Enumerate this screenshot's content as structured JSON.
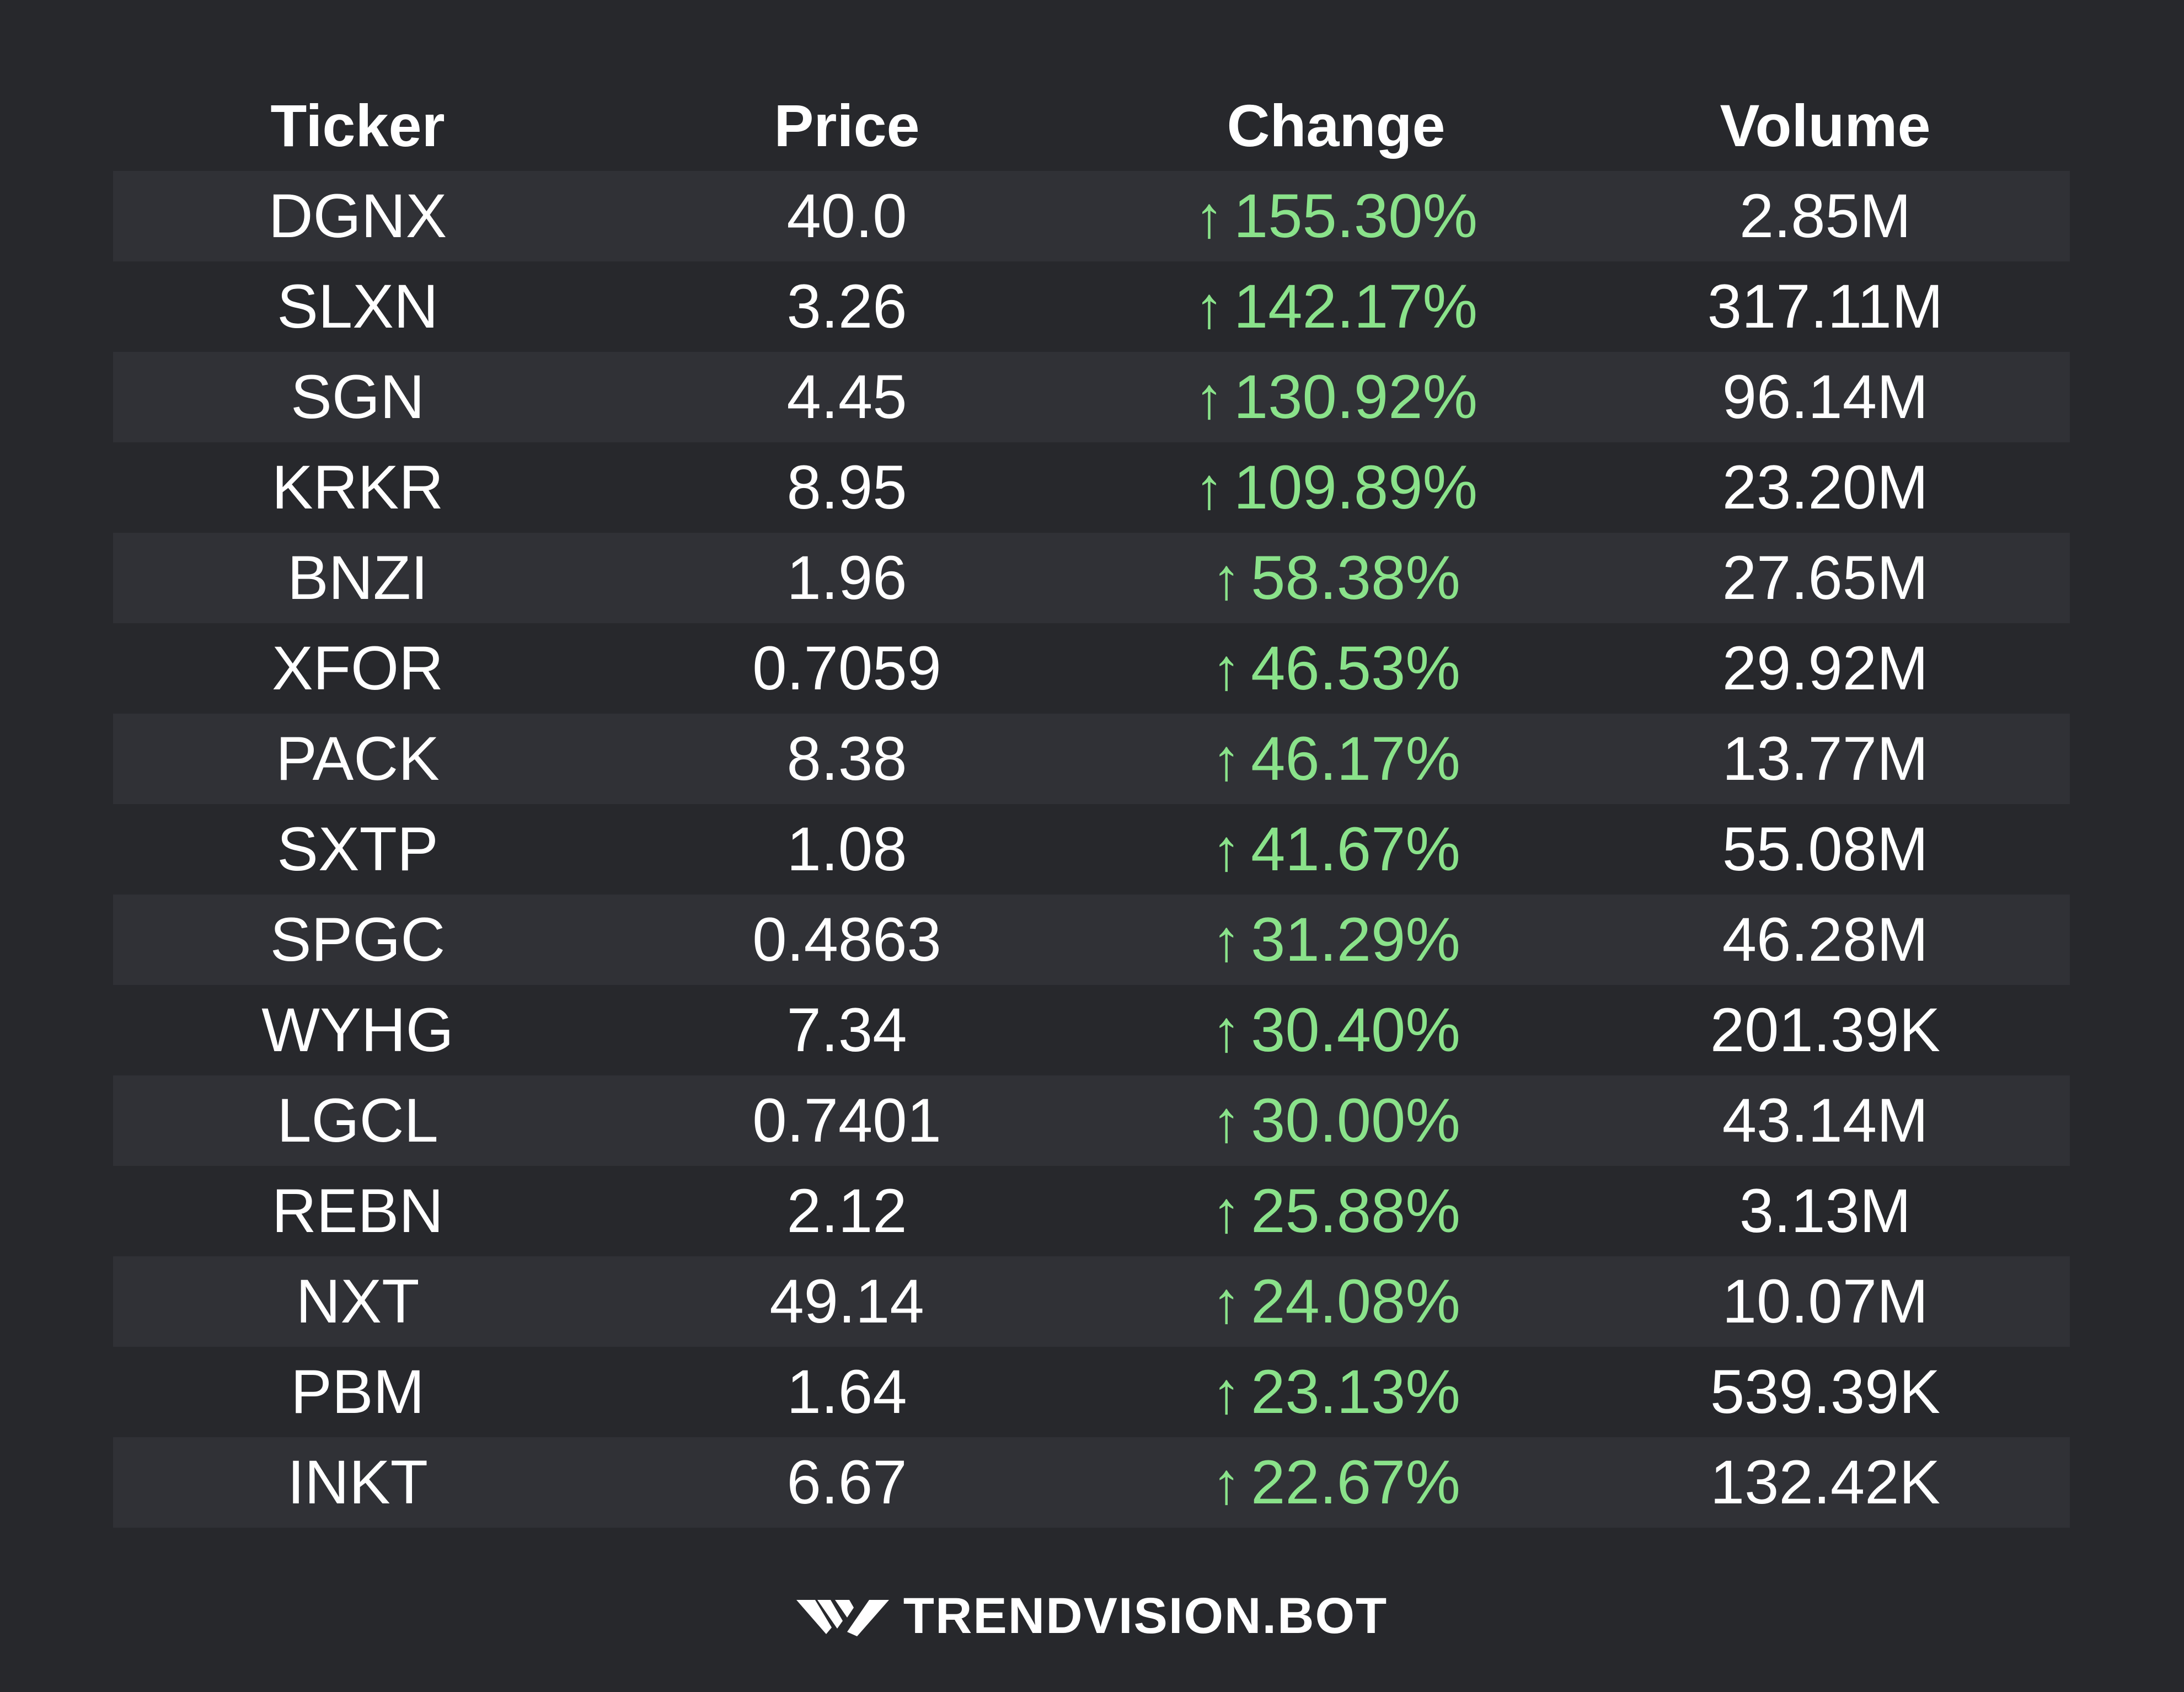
{
  "chart_data": {
    "type": "table",
    "columns": [
      "Ticker",
      "Price",
      "Change",
      "Volume"
    ],
    "rows": [
      {
        "ticker": "DGNX",
        "price": "40.0",
        "change": "155.30%",
        "volume": "2.85M"
      },
      {
        "ticker": "SLXN",
        "price": "3.26",
        "change": "142.17%",
        "volume": "317.11M"
      },
      {
        "ticker": "SGN",
        "price": "4.45",
        "change": "130.92%",
        "volume": "96.14M"
      },
      {
        "ticker": "KRKR",
        "price": "8.95",
        "change": "109.89%",
        "volume": "23.20M"
      },
      {
        "ticker": "BNZI",
        "price": "1.96",
        "change": "58.38%",
        "volume": "27.65M"
      },
      {
        "ticker": "XFOR",
        "price": "0.7059",
        "change": "46.53%",
        "volume": "29.92M"
      },
      {
        "ticker": "PACK",
        "price": "8.38",
        "change": "46.17%",
        "volume": "13.77M"
      },
      {
        "ticker": "SXTP",
        "price": "1.08",
        "change": "41.67%",
        "volume": "55.08M"
      },
      {
        "ticker": "SPGC",
        "price": "0.4863",
        "change": "31.29%",
        "volume": "46.28M"
      },
      {
        "ticker": "WYHG",
        "price": "7.34",
        "change": "30.40%",
        "volume": "201.39K"
      },
      {
        "ticker": "LGCL",
        "price": "0.7401",
        "change": "30.00%",
        "volume": "43.14M"
      },
      {
        "ticker": "REBN",
        "price": "2.12",
        "change": "25.88%",
        "volume": "3.13M"
      },
      {
        "ticker": "NXT",
        "price": "49.14",
        "change": "24.08%",
        "volume": "10.07M"
      },
      {
        "ticker": "PBM",
        "price": "1.64",
        "change": "23.13%",
        "volume": "539.39K"
      },
      {
        "ticker": "INKT",
        "price": "6.67",
        "change": "22.67%",
        "volume": "132.42K"
      }
    ],
    "up_arrow": "↑",
    "up_color": "#8ae28a"
  },
  "footer": {
    "brand": "TRENDVISION.BOT",
    "logo_icon": "trendvision-logo-icon"
  }
}
